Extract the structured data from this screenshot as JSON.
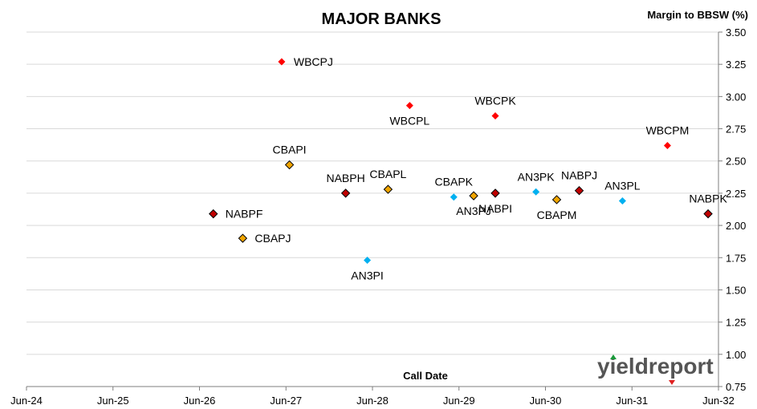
{
  "chart_data": {
    "type": "scatter",
    "title": "MAJOR BANKS",
    "ylabel": "Margin to BBSW (%)",
    "xlabel": "Call Date",
    "ylim": [
      0.75,
      3.5
    ],
    "yticks": [
      "0.75",
      "1.00",
      "1.25",
      "1.50",
      "1.75",
      "2.00",
      "2.25",
      "2.50",
      "2.75",
      "3.00",
      "3.25",
      "3.50"
    ],
    "xticks": [
      {
        "label": "Jun-24",
        "value": 2024.45
      },
      {
        "label": "Jun-25",
        "value": 2025.45
      },
      {
        "label": "Jun-26",
        "value": 2026.45
      },
      {
        "label": "Jun-27",
        "value": 2027.45
      },
      {
        "label": "Jun-28",
        "value": 2028.45
      },
      {
        "label": "Jun-29",
        "value": 2029.45
      },
      {
        "label": "Jun-30",
        "value": 2030.45
      },
      {
        "label": "Jun-31",
        "value": 2031.45
      },
      {
        "label": "Jun-32",
        "value": 2032.45
      }
    ],
    "xlim": [
      2024.45,
      2032.45
    ],
    "grid": true,
    "y_axis_side": "right",
    "points": [
      {
        "label": "WBCPJ",
        "x": 2027.4,
        "y": 3.27,
        "color": "#ff0000",
        "outline": false,
        "label_pos": "right"
      },
      {
        "label": "WBCPL",
        "x": 2028.88,
        "y": 2.93,
        "color": "#ff0000",
        "outline": false,
        "label_pos": "below"
      },
      {
        "label": "WBCPK",
        "x": 2029.87,
        "y": 2.85,
        "color": "#ff0000",
        "outline": false,
        "label_pos": "above"
      },
      {
        "label": "WBCPM",
        "x": 2031.86,
        "y": 2.62,
        "color": "#ff0000",
        "outline": false,
        "label_pos": "above"
      },
      {
        "label": "CBAPI",
        "x": 2027.49,
        "y": 2.47,
        "color": "#f0a500",
        "outline": true,
        "label_pos": "above"
      },
      {
        "label": "NABPH",
        "x": 2028.14,
        "y": 2.25,
        "color": "#c00000",
        "outline": true,
        "label_pos": "above"
      },
      {
        "label": "CBAPL",
        "x": 2028.63,
        "y": 2.28,
        "color": "#f0a500",
        "outline": true,
        "label_pos": "above"
      },
      {
        "label": "CBAPK",
        "x": 2029.39,
        "y": 2.22,
        "color": "#00b0f0",
        "outline": false,
        "label_pos": "above"
      },
      {
        "label": "AN3PJ",
        "x": 2029.62,
        "y": 2.23,
        "color": "#f0a500",
        "outline": true,
        "label_pos": "below"
      },
      {
        "label": "NABPI",
        "x": 2029.87,
        "y": 2.25,
        "color": "#c00000",
        "outline": true,
        "label_pos": "below"
      },
      {
        "label": "AN3PK",
        "x": 2030.34,
        "y": 2.26,
        "color": "#00b0f0",
        "outline": false,
        "label_pos": "above"
      },
      {
        "label": "CBAPM",
        "x": 2030.58,
        "y": 2.2,
        "color": "#f0a500",
        "outline": true,
        "label_pos": "below"
      },
      {
        "label": "NABPJ",
        "x": 2030.84,
        "y": 2.27,
        "color": "#c00000",
        "outline": true,
        "label_pos": "above"
      },
      {
        "label": "AN3PL",
        "x": 2031.34,
        "y": 2.19,
        "color": "#00b0f0",
        "outline": false,
        "label_pos": "above"
      },
      {
        "label": "NABPK",
        "x": 2032.33,
        "y": 2.09,
        "color": "#c00000",
        "outline": true,
        "label_pos": "above"
      },
      {
        "label": "NABPF",
        "x": 2026.61,
        "y": 2.09,
        "color": "#c00000",
        "outline": true,
        "label_pos": "right"
      },
      {
        "label": "CBAPJ",
        "x": 2026.95,
        "y": 1.9,
        "color": "#f0a500",
        "outline": true,
        "label_pos": "right"
      },
      {
        "label": "AN3PI",
        "x": 2028.39,
        "y": 1.73,
        "color": "#00b0f0",
        "outline": false,
        "label_pos": "below"
      }
    ]
  },
  "logo": {
    "text": "yieldreport"
  }
}
